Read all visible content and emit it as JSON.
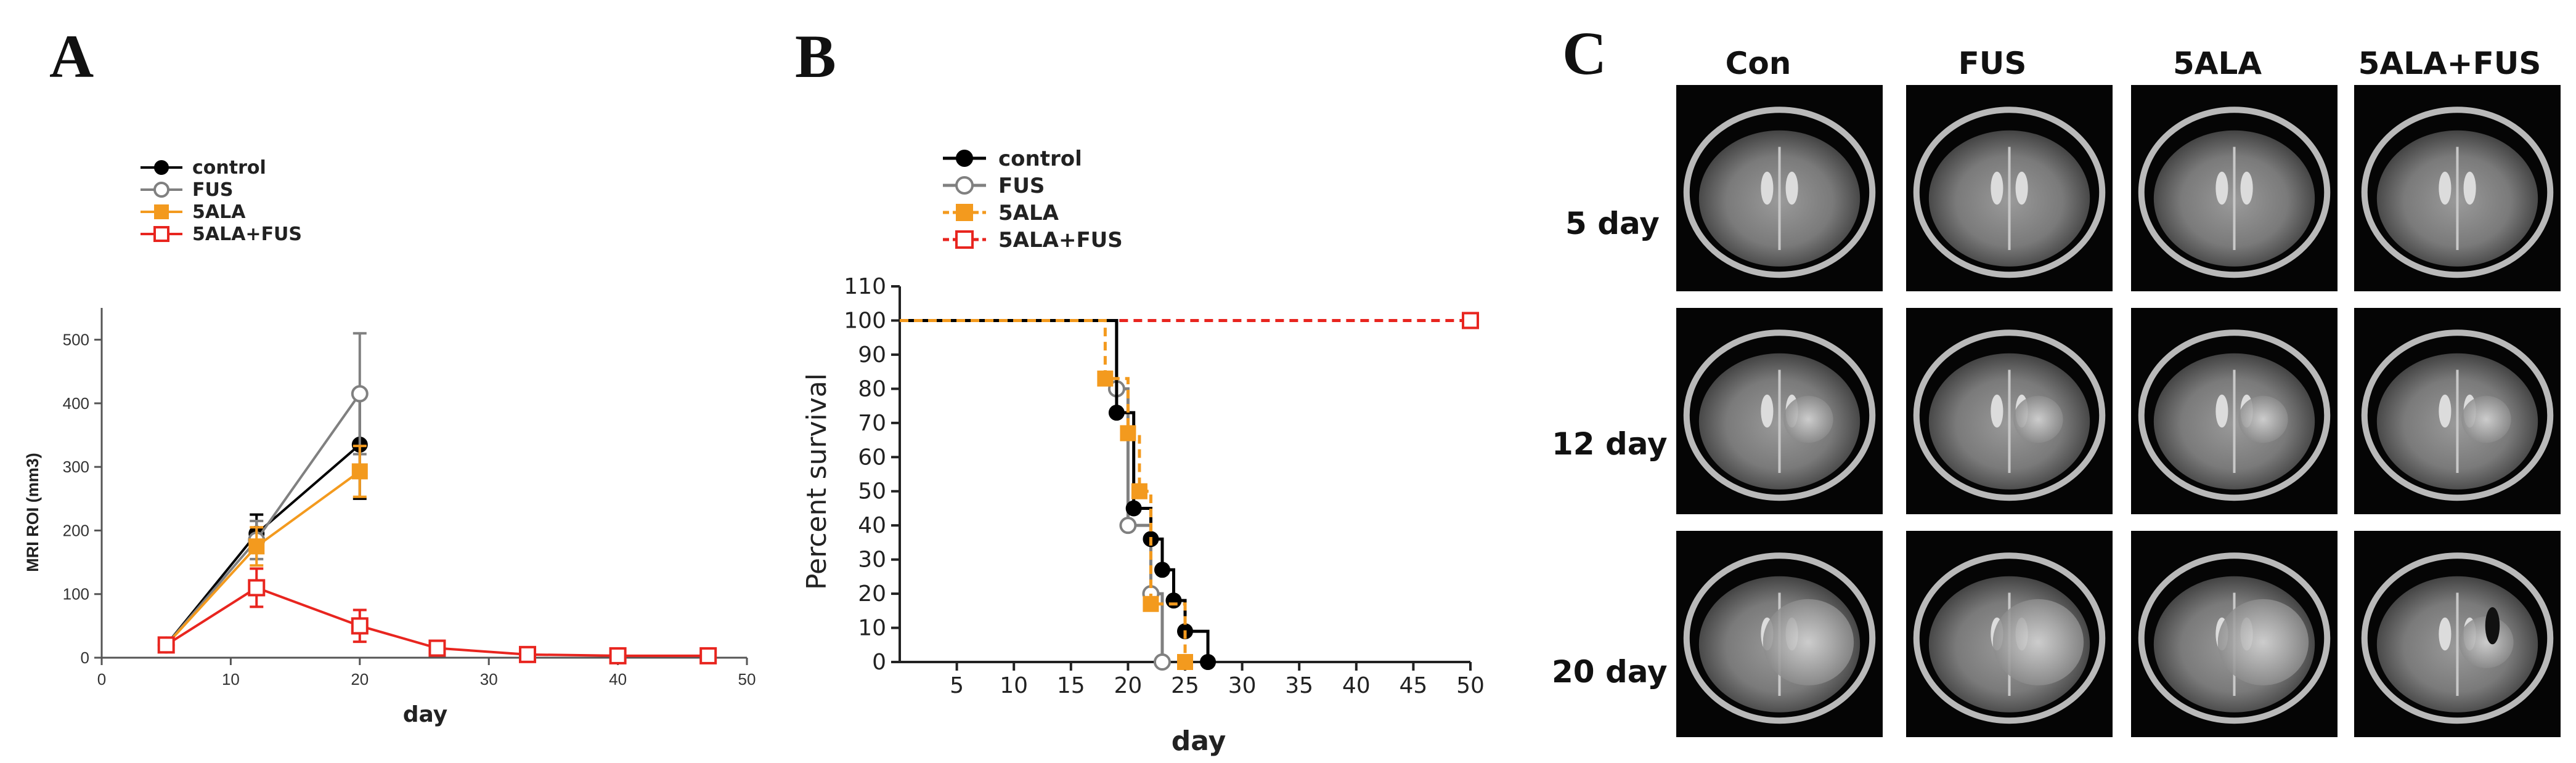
{
  "figure": {
    "panel_labels": [
      "A",
      "B",
      "C"
    ]
  },
  "chart_data": [
    {
      "type": "line",
      "panel": "A",
      "title": "",
      "xlabel": "day",
      "ylabel": "MRI ROI (mm3)",
      "xlim": [
        0,
        50
      ],
      "ylim": [
        0,
        550
      ],
      "xticks": [
        0,
        10,
        20,
        30,
        40,
        50
      ],
      "yticks": [
        0,
        100,
        200,
        300,
        400,
        500
      ],
      "legend": [
        {
          "name": "control",
          "color": "#000000",
          "marker": "filled-circle"
        },
        {
          "name": "FUS",
          "color": "#808080",
          "marker": "open-circle"
        },
        {
          "name": "5ALA",
          "color": "#F39A1E",
          "marker": "filled-square"
        },
        {
          "name": "5ALA+FUS",
          "color": "#E8251F",
          "marker": "open-square"
        }
      ],
      "series": [
        {
          "name": "control",
          "color": "#000000",
          "x": [
            5,
            12,
            20
          ],
          "y": [
            20,
            195,
            335
          ],
          "err": [
            0,
            30,
            85
          ]
        },
        {
          "name": "FUS",
          "color": "#808080",
          "x": [
            5,
            12,
            20
          ],
          "y": [
            20,
            185,
            415
          ],
          "err": [
            0,
            30,
            95
          ]
        },
        {
          "name": "5ALA",
          "color": "#F39A1E",
          "x": [
            5,
            12,
            20
          ],
          "y": [
            20,
            175,
            293
          ],
          "err": [
            0,
            30,
            40
          ]
        },
        {
          "name": "5ALA+FUS",
          "color": "#E8251F",
          "x": [
            5,
            12,
            20,
            26,
            33,
            40,
            47
          ],
          "y": [
            20,
            110,
            50,
            15,
            5,
            3,
            3
          ],
          "err": [
            0,
            30,
            25,
            5,
            2,
            2,
            2
          ]
        }
      ]
    },
    {
      "type": "line",
      "panel": "B",
      "title": "",
      "xlabel": "day",
      "ylabel": "Percent survival",
      "xlim": [
        0,
        50
      ],
      "ylim": [
        0,
        110
      ],
      "xticks": [
        5,
        10,
        15,
        20,
        25,
        30,
        35,
        40,
        45,
        50
      ],
      "yticks": [
        0,
        10,
        20,
        30,
        40,
        50,
        60,
        70,
        80,
        90,
        100,
        110
      ],
      "legend": [
        {
          "name": "control",
          "color": "#000000",
          "marker": "filled-circle"
        },
        {
          "name": "FUS",
          "color": "#808080",
          "marker": "open-circle"
        },
        {
          "name": "5ALA",
          "color": "#F39A1E",
          "marker": "filled-square"
        },
        {
          "name": "5ALA+FUS",
          "color": "#E8251F",
          "marker": "open-square"
        }
      ],
      "series": [
        {
          "name": "control",
          "color": "#000000",
          "step": true,
          "dash": false,
          "x": [
            0,
            18.5,
            19,
            20,
            20.5,
            21,
            22,
            23,
            24,
            25,
            27
          ],
          "y": [
            100,
            100,
            73,
            73,
            45,
            45,
            36,
            27,
            18,
            9,
            0
          ],
          "markers_x": [
            19,
            20.5,
            22,
            23,
            24,
            25,
            27
          ],
          "markers_y": [
            73,
            45,
            36,
            27,
            18,
            9,
            0
          ]
        },
        {
          "name": "FUS",
          "color": "#808080",
          "step": true,
          "dash": false,
          "x": [
            0,
            19,
            19,
            20,
            20,
            21,
            21,
            22,
            22,
            23,
            23
          ],
          "y": [
            100,
            100,
            80,
            80,
            40,
            40,
            40,
            40,
            20,
            20,
            0
          ],
          "markers_x": [
            19,
            20,
            22,
            23
          ],
          "markers_y": [
            80,
            40,
            20,
            0
          ]
        },
        {
          "name": "5ALA",
          "color": "#F39A1E",
          "step": true,
          "dash": true,
          "x": [
            0,
            18,
            18,
            20,
            20,
            21,
            21,
            22,
            22,
            25,
            25
          ],
          "y": [
            100,
            100,
            83,
            83,
            67,
            67,
            50,
            50,
            17,
            17,
            0
          ],
          "markers_x": [
            18,
            20,
            21,
            22,
            25
          ],
          "markers_y": [
            83,
            67,
            50,
            17,
            0
          ]
        },
        {
          "name": "5ALA+FUS",
          "color": "#E8251F",
          "step": false,
          "dash": true,
          "x": [
            18,
            50
          ],
          "y": [
            100,
            100
          ],
          "markers_x": [
            50
          ],
          "markers_y": [
            100
          ]
        }
      ]
    }
  ],
  "mri_grid": {
    "columns": [
      "Con",
      "FUS",
      "5ALA",
      "5ALA+FUS"
    ],
    "rows": [
      "5 day",
      "12 day",
      "20 day"
    ]
  }
}
